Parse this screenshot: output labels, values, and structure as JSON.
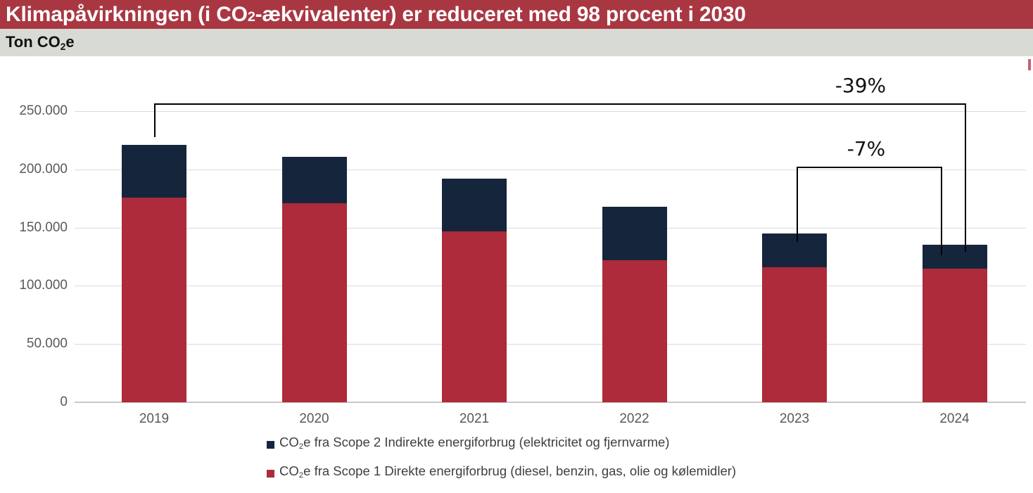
{
  "header": {
    "title_pre": "Klimapåvirkningen (i CO",
    "title_sub": "2",
    "title_post": "-ækvivalenter) er reduceret med 98 procent i 2030"
  },
  "axis_title": {
    "pre": "Ton CO",
    "sub": "2",
    "post": "e"
  },
  "colors": {
    "header_bg": "#A93742",
    "subbar_bg": "#D7DBD4",
    "scope1_red": "#AD2B3A",
    "scope2_navy": "#15263C",
    "gridline": "#DBDBDB",
    "axis_line": "#C8C8C8",
    "tick_text": "#595959",
    "legend_text": "#3F3F3F",
    "annotation_line": "#000000"
  },
  "chart_data": {
    "type": "bar",
    "stacked": true,
    "title": "Klimapåvirkningen (i CO2-ækvivalenter) er reduceret med 98 procent i 2030",
    "ylabel": "Ton CO2e",
    "xlabel": "",
    "grid": "horizontal",
    "legend_position": "bottom",
    "ylim": [
      0,
      250000
    ],
    "categories": [
      "2019",
      "2020",
      "2021",
      "2022",
      "2023",
      "2024"
    ],
    "series": [
      {
        "name": "CO2e fra Scope 1 Direkte energiforbrug (diesel, benzin, gas, olie og kølemidler)",
        "color": "#AD2B3A",
        "values": [
          176000,
          171000,
          147000,
          122000,
          116000,
          115000
        ]
      },
      {
        "name": "CO2e fra Scope 2 Indirekte energiforbrug (elektricitet og fjernvarme)",
        "color": "#15263C",
        "values": [
          45000,
          40000,
          45000,
          46000,
          29000,
          20000
        ]
      }
    ],
    "totals": [
      221000,
      211000,
      192000,
      168000,
      145000,
      135000
    ],
    "yticks": [
      {
        "value": 0,
        "label": "0"
      },
      {
        "value": 50000,
        "label": "50.000"
      },
      {
        "value": 100000,
        "label": "100.000"
      },
      {
        "value": 150000,
        "label": "150.000"
      },
      {
        "value": 200000,
        "label": "200.000"
      },
      {
        "value": 250000,
        "label": "250.000"
      }
    ],
    "annotations": [
      {
        "label": "-39%",
        "from": "2019",
        "to": "2024"
      },
      {
        "label": "-7%",
        "from": "2023",
        "to": "2024"
      }
    ]
  },
  "legend": {
    "items": [
      {
        "pre": "CO",
        "sub": "2",
        "post": "e fra Scope 2 Indirekte energiforbrug (elektricitet og fjernvarme)",
        "color": "#15263C"
      },
      {
        "pre": "CO",
        "sub": "2",
        "post": "e fra Scope 1 Direkte energiforbrug (diesel, benzin, gas, olie og kølemidler)",
        "color": "#AD2B3A"
      }
    ]
  }
}
